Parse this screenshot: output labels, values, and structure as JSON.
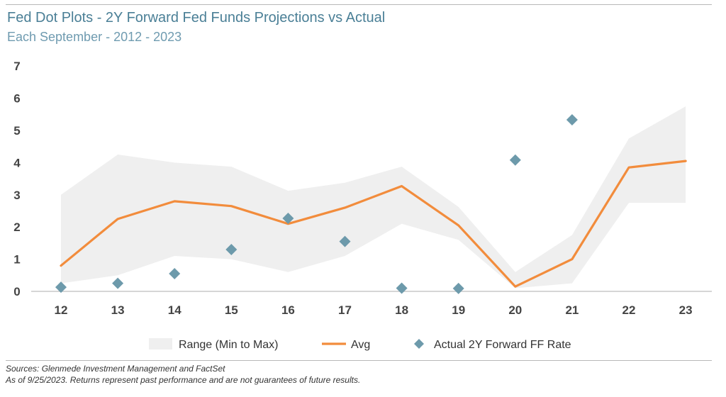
{
  "header": {
    "title": "Fed Dot Plots - 2Y Forward Fed Funds Projections vs Actual",
    "subtitle": "Each September - 2012 - 2023"
  },
  "footer": {
    "source_line1": "Sources: Glenmede Investment Management and FactSet",
    "source_line2": "As of 9/25/2023. Returns represent past performance and are not guarantees of future results."
  },
  "colors": {
    "range": "#efefef",
    "avg": "#f28c3c",
    "actual": "#6d9aab",
    "axis": "#c8c8c8"
  },
  "chart_data": {
    "type": "line",
    "title": "Fed Dot Plots - 2Y Forward Fed Funds Projections vs Actual",
    "subtitle": "Each September - 2012 - 2023",
    "categories": [
      "12",
      "13",
      "14",
      "15",
      "16",
      "17",
      "18",
      "19",
      "20",
      "21",
      "22",
      "23"
    ],
    "ylim": [
      0,
      7
    ],
    "yticks": [
      "0",
      "1",
      "2",
      "3",
      "4",
      "5",
      "6",
      "7"
    ],
    "grid": false,
    "legend": "bottom",
    "series": [
      {
        "name": "Range (Min to Max)",
        "kind": "area-range",
        "low": [
          0.25,
          0.5,
          1.1,
          1.0,
          0.6,
          1.1,
          2.1,
          1.6,
          0.1,
          0.25,
          2.75,
          2.75
        ],
        "high": [
          3.0,
          4.25,
          4.0,
          3.875,
          3.125,
          3.375,
          3.875,
          2.625,
          0.6,
          1.75,
          4.75,
          5.75
        ]
      },
      {
        "name": "Avg",
        "kind": "line",
        "values": [
          0.8,
          2.25,
          2.8,
          2.65,
          2.1,
          2.6,
          3.27,
          2.05,
          0.15,
          1.0,
          3.85,
          4.05
        ]
      },
      {
        "name": "Actual 2Y Forward FF Rate",
        "kind": "scatter",
        "values": [
          0.13,
          0.25,
          0.55,
          1.3,
          2.27,
          1.55,
          0.1,
          0.09,
          4.08,
          5.33,
          null,
          null
        ]
      }
    ]
  }
}
